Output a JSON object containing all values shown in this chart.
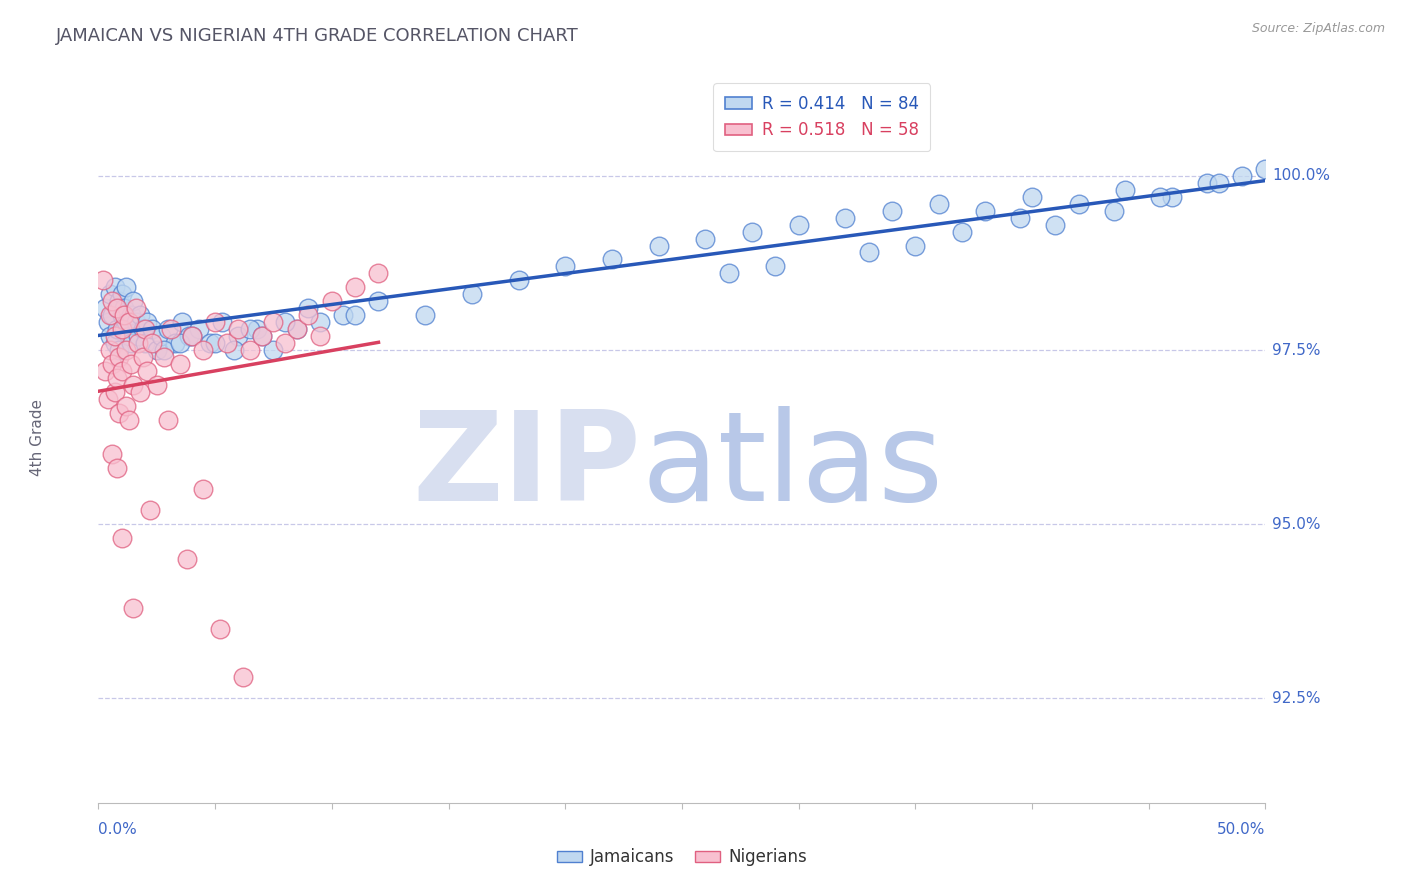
{
  "title": "JAMAICAN VS NIGERIAN 4TH GRADE CORRELATION CHART",
  "source": "Source: ZipAtlas.com",
  "ylabel": "4th Grade",
  "y_tick_labels": [
    "92.5%",
    "95.0%",
    "97.5%",
    "100.0%"
  ],
  "y_tick_values": [
    92.5,
    95.0,
    97.5,
    100.0
  ],
  "xlim": [
    0.0,
    50.0
  ],
  "ylim": [
    91.0,
    101.5
  ],
  "legend_r1": "R = 0.414   N = 84",
  "legend_r2": "R = 0.518   N = 58",
  "color_jamaican_face": "#c0d8f0",
  "color_jamaican_edge": "#5080d0",
  "color_nigerian_face": "#f8c0d0",
  "color_nigerian_edge": "#e06080",
  "color_line_jamaican": "#2858b8",
  "color_line_nigerian": "#d84060",
  "background_color": "#ffffff",
  "grid_color": "#c8c8e8",
  "watermark_zip_color": "#d8dff0",
  "watermark_atlas_color": "#b8c8e8",
  "jamaican_x": [
    0.3,
    0.4,
    0.5,
    0.5,
    0.6,
    0.7,
    0.7,
    0.8,
    0.8,
    0.9,
    0.9,
    1.0,
    1.0,
    1.1,
    1.1,
    1.2,
    1.2,
    1.3,
    1.4,
    1.4,
    1.5,
    1.6,
    1.7,
    1.8,
    1.9,
    2.0,
    2.1,
    2.3,
    2.5,
    2.7,
    3.0,
    3.3,
    3.6,
    3.9,
    4.3,
    4.8,
    5.3,
    6.0,
    6.8,
    7.5,
    8.5,
    9.5,
    10.5,
    12.0,
    14.0,
    16.0,
    18.0,
    20.0,
    22.0,
    24.0,
    26.0,
    28.0,
    30.0,
    32.0,
    34.0,
    36.0,
    38.0,
    40.0,
    42.0,
    44.0,
    46.0,
    47.5,
    49.0,
    50.0,
    41.0,
    43.5,
    45.5,
    48.0,
    37.0,
    39.5,
    33.0,
    35.0,
    27.0,
    29.0,
    2.8,
    3.5,
    4.0,
    5.0,
    5.8,
    6.5,
    7.0,
    8.0,
    9.0,
    11.0
  ],
  "jamaican_y": [
    98.1,
    97.9,
    98.3,
    97.7,
    98.0,
    98.4,
    97.6,
    98.1,
    97.8,
    98.2,
    97.5,
    98.0,
    98.3,
    97.8,
    98.1,
    97.9,
    98.4,
    97.7,
    98.0,
    97.6,
    98.2,
    97.9,
    97.7,
    98.0,
    97.8,
    97.6,
    97.9,
    97.8,
    97.5,
    97.7,
    97.8,
    97.6,
    97.9,
    97.7,
    97.8,
    97.6,
    97.9,
    97.7,
    97.8,
    97.5,
    97.8,
    97.9,
    98.0,
    98.2,
    98.0,
    98.3,
    98.5,
    98.7,
    98.8,
    99.0,
    99.1,
    99.2,
    99.3,
    99.4,
    99.5,
    99.6,
    99.5,
    99.7,
    99.6,
    99.8,
    99.7,
    99.9,
    100.0,
    100.1,
    99.3,
    99.5,
    99.7,
    99.9,
    99.2,
    99.4,
    98.9,
    99.0,
    98.6,
    98.7,
    97.5,
    97.6,
    97.7,
    97.6,
    97.5,
    97.8,
    97.7,
    97.9,
    98.1,
    98.0
  ],
  "nigerian_x": [
    0.2,
    0.3,
    0.4,
    0.5,
    0.5,
    0.6,
    0.6,
    0.7,
    0.7,
    0.8,
    0.8,
    0.9,
    0.9,
    1.0,
    1.0,
    1.1,
    1.2,
    1.2,
    1.3,
    1.4,
    1.5,
    1.6,
    1.7,
    1.8,
    1.9,
    2.0,
    2.1,
    2.3,
    2.5,
    2.8,
    3.1,
    3.5,
    4.0,
    4.5,
    5.0,
    5.5,
    6.0,
    6.5,
    7.0,
    7.5,
    8.0,
    8.5,
    9.0,
    9.5,
    10.0,
    11.0,
    12.0,
    1.3,
    0.6,
    0.8,
    1.0,
    1.5,
    2.2,
    3.0,
    3.8,
    4.5,
    5.2,
    6.2
  ],
  "nigerian_y": [
    98.5,
    97.2,
    96.8,
    97.5,
    98.0,
    97.3,
    98.2,
    96.9,
    97.7,
    97.1,
    98.1,
    97.4,
    96.6,
    97.8,
    97.2,
    98.0,
    97.5,
    96.7,
    97.9,
    97.3,
    97.0,
    98.1,
    97.6,
    96.9,
    97.4,
    97.8,
    97.2,
    97.6,
    97.0,
    97.4,
    97.8,
    97.3,
    97.7,
    97.5,
    97.9,
    97.6,
    97.8,
    97.5,
    97.7,
    97.9,
    97.6,
    97.8,
    98.0,
    97.7,
    98.2,
    98.4,
    98.6,
    96.5,
    96.0,
    95.8,
    94.8,
    93.8,
    95.2,
    96.5,
    94.5,
    95.5,
    93.5,
    92.8
  ]
}
